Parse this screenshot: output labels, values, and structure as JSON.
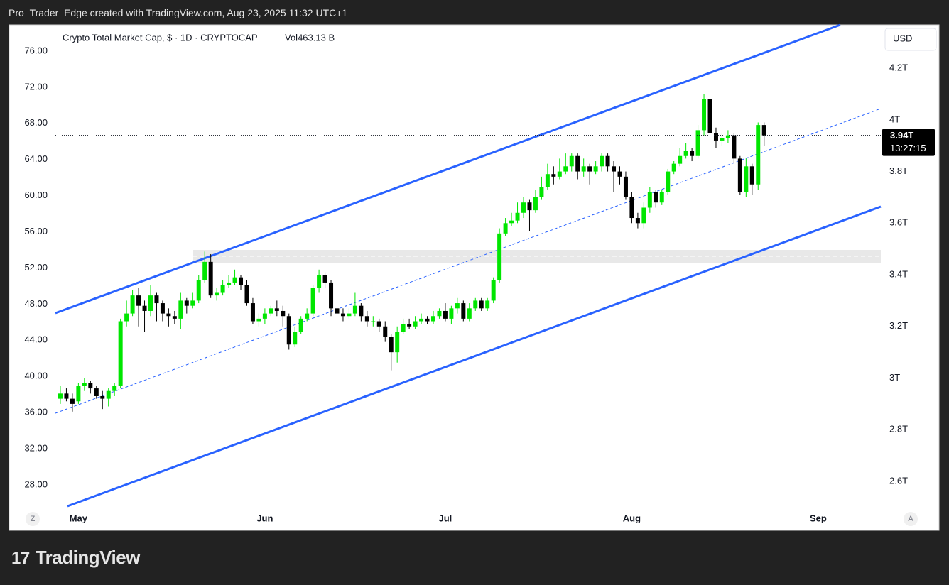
{
  "header": "Pro_Trader_Edge created with TradingView.com, Aug 23, 2025 11:32 UTC+1",
  "brand": "TradingView",
  "currency_button": "USD",
  "scale_buttons": [
    "Z",
    "A"
  ],
  "countdown": "13:27:15",
  "chart_data": {
    "type": "candlestick",
    "title": "Crypto Total Market Cap, $ · 1D · CRYPTOCAP",
    "volume_label": "Vol463.13 B",
    "up_color": "#00e600",
    "down_color": "#000000",
    "axis": "y2",
    "last_value_label": "3.94T",
    "open": [
      2.92,
      2.94,
      2.92,
      2.91,
      2.97,
      2.98,
      2.96,
      2.93,
      2.92,
      2.95,
      2.97,
      3.22,
      3.25,
      3.32,
      3.28,
      3.26,
      3.32,
      3.29,
      3.25,
      3.24,
      3.23,
      3.3,
      3.28,
      3.3,
      3.38,
      3.45,
      3.32,
      3.33,
      3.36,
      3.37,
      3.39,
      3.36,
      3.29,
      3.22,
      3.23,
      3.25,
      3.27,
      3.26,
      3.24,
      3.13,
      3.18,
      3.23,
      3.25,
      3.35,
      3.4,
      3.37,
      3.27,
      3.25,
      3.24,
      3.25,
      3.28,
      3.24,
      3.22,
      3.22,
      3.2,
      3.16,
      3.1,
      3.18,
      3.21,
      3.2,
      3.22,
      3.23,
      3.22,
      3.24,
      3.26,
      3.23,
      3.27,
      3.29,
      3.23,
      3.27,
      3.3,
      3.27,
      3.3,
      3.38,
      3.56,
      3.6,
      3.61,
      3.64,
      3.68,
      3.65,
      3.7,
      3.74,
      3.79,
      3.78,
      3.8,
      3.82,
      3.86,
      3.8,
      3.82,
      3.8,
      3.82,
      3.86,
      3.82,
      3.8,
      3.78,
      3.7,
      3.62,
      3.6,
      3.66,
      3.72,
      3.68,
      3.72,
      3.8,
      3.83,
      3.86,
      3.88,
      3.86,
      3.96,
      4.08,
      3.95,
      3.92,
      3.93,
      3.94,
      3.85,
      3.72,
      3.82,
      3.75,
      3.98
    ],
    "high": [
      2.97,
      2.96,
      2.94,
      2.98,
      3.0,
      2.99,
      2.97,
      2.95,
      2.96,
      2.98,
      3.23,
      3.3,
      3.34,
      3.35,
      3.3,
      3.36,
      3.33,
      3.3,
      3.27,
      3.26,
      3.33,
      3.31,
      3.33,
      3.4,
      3.49,
      3.48,
      3.35,
      3.38,
      3.4,
      3.42,
      3.4,
      3.38,
      3.31,
      3.25,
      3.27,
      3.28,
      3.3,
      3.28,
      3.25,
      3.2,
      3.24,
      3.27,
      3.36,
      3.42,
      3.41,
      3.38,
      3.29,
      3.27,
      3.27,
      3.33,
      3.29,
      3.26,
      3.24,
      3.23,
      3.22,
      3.17,
      3.2,
      3.23,
      3.23,
      3.24,
      3.25,
      3.24,
      3.26,
      3.27,
      3.29,
      3.28,
      3.31,
      3.3,
      3.29,
      3.31,
      3.31,
      3.31,
      3.39,
      3.58,
      3.62,
      3.64,
      3.68,
      3.7,
      3.69,
      3.73,
      3.78,
      3.83,
      3.82,
      3.85,
      3.87,
      3.87,
      3.87,
      3.85,
      3.83,
      3.84,
      3.87,
      3.87,
      3.84,
      3.82,
      3.8,
      3.72,
      3.64,
      3.68,
      3.74,
      3.73,
      3.73,
      3.81,
      3.84,
      3.89,
      3.91,
      3.89,
      3.98,
      4.1,
      4.12,
      3.97,
      3.95,
      3.96,
      3.95,
      3.86,
      3.85,
      3.83,
      3.99,
      3.99
    ],
    "low": [
      2.9,
      2.91,
      2.87,
      2.9,
      2.95,
      2.94,
      2.92,
      2.88,
      2.89,
      2.93,
      2.96,
      3.2,
      3.24,
      3.2,
      3.18,
      3.24,
      3.22,
      3.22,
      3.2,
      3.21,
      3.19,
      3.25,
      3.27,
      3.29,
      3.37,
      3.31,
      3.3,
      3.32,
      3.35,
      3.36,
      3.34,
      3.28,
      3.21,
      3.2,
      3.21,
      3.24,
      3.24,
      3.2,
      3.11,
      3.12,
      3.17,
      3.22,
      3.24,
      3.33,
      3.35,
      3.24,
      3.17,
      3.22,
      3.23,
      3.24,
      3.22,
      3.2,
      3.2,
      3.18,
      3.14,
      3.03,
      3.06,
      3.17,
      3.19,
      3.19,
      3.21,
      3.21,
      3.21,
      3.23,
      3.22,
      3.21,
      3.25,
      3.22,
      3.22,
      3.26,
      3.26,
      3.26,
      3.29,
      3.37,
      3.55,
      3.59,
      3.6,
      3.62,
      3.57,
      3.64,
      3.69,
      3.73,
      3.75,
      3.77,
      3.79,
      3.8,
      3.77,
      3.78,
      3.75,
      3.79,
      3.8,
      3.8,
      3.72,
      3.75,
      3.69,
      3.6,
      3.58,
      3.58,
      3.64,
      3.66,
      3.67,
      3.71,
      3.79,
      3.82,
      3.85,
      3.84,
      3.85,
      3.94,
      3.92,
      3.89,
      3.9,
      3.91,
      3.83,
      3.71,
      3.7,
      3.71,
      3.73,
      3.9
    ],
    "close": [
      2.94,
      2.92,
      2.9,
      2.97,
      2.98,
      2.96,
      2.93,
      2.92,
      2.95,
      2.97,
      3.22,
      3.25,
      3.32,
      3.28,
      3.26,
      3.32,
      3.29,
      3.25,
      3.24,
      3.23,
      3.3,
      3.28,
      3.3,
      3.38,
      3.45,
      3.32,
      3.33,
      3.36,
      3.37,
      3.39,
      3.36,
      3.29,
      3.22,
      3.23,
      3.25,
      3.27,
      3.26,
      3.24,
      3.13,
      3.18,
      3.23,
      3.25,
      3.35,
      3.4,
      3.37,
      3.27,
      3.25,
      3.24,
      3.25,
      3.28,
      3.24,
      3.22,
      3.22,
      3.2,
      3.16,
      3.1,
      3.18,
      3.21,
      3.2,
      3.22,
      3.23,
      3.22,
      3.24,
      3.26,
      3.23,
      3.27,
      3.29,
      3.23,
      3.27,
      3.3,
      3.27,
      3.3,
      3.38,
      3.56,
      3.6,
      3.61,
      3.64,
      3.68,
      3.65,
      3.7,
      3.74,
      3.79,
      3.78,
      3.8,
      3.82,
      3.86,
      3.8,
      3.82,
      3.8,
      3.82,
      3.86,
      3.82,
      3.8,
      3.78,
      3.7,
      3.62,
      3.6,
      3.66,
      3.72,
      3.68,
      3.72,
      3.8,
      3.83,
      3.86,
      3.88,
      3.86,
      3.96,
      4.08,
      3.95,
      3.92,
      3.93,
      3.94,
      3.85,
      3.72,
      3.82,
      3.75,
      3.98,
      3.94
    ],
    "xlim": [
      -8.5,
      136.4
    ],
    "xticks": [
      {
        "value": 3,
        "label": "May"
      },
      {
        "value": 34,
        "label": "Jun"
      },
      {
        "value": 64,
        "label": "Jul"
      },
      {
        "value": 95,
        "label": "Aug"
      },
      {
        "value": 126,
        "label": "Sep"
      }
    ],
    "ylim": [
      25.25,
      78.9
    ],
    "yticks": [
      {
        "value": 28,
        "label": "28.00"
      },
      {
        "value": 32,
        "label": "32.00"
      },
      {
        "value": 36,
        "label": "36.00"
      },
      {
        "value": 40,
        "label": "40.00"
      },
      {
        "value": 44,
        "label": "44.00"
      },
      {
        "value": 48,
        "label": "48.00"
      },
      {
        "value": 52,
        "label": "52.00"
      },
      {
        "value": 56,
        "label": "56.00"
      },
      {
        "value": 60,
        "label": "60.00"
      },
      {
        "value": 64,
        "label": "64.00"
      },
      {
        "value": 68,
        "label": "68.00"
      },
      {
        "value": 72,
        "label": "72.00"
      },
      {
        "value": 76,
        "label": "76.00"
      }
    ],
    "y2lim": [
      2.49,
      4.368
    ],
    "y2ticks": [
      {
        "value": 2.6,
        "label": "2.6T"
      },
      {
        "value": 2.8,
        "label": "2.8T"
      },
      {
        "value": 3,
        "label": "3T"
      },
      {
        "value": 3.2,
        "label": "3.2T"
      },
      {
        "value": 3.4,
        "label": "3.4T"
      },
      {
        "value": 3.6,
        "label": "3.6T"
      },
      {
        "value": 3.8,
        "label": "3.8T"
      },
      {
        "value": 4,
        "label": "4T"
      },
      {
        "value": 4.2,
        "label": "4.2T"
      }
    ]
  }
}
